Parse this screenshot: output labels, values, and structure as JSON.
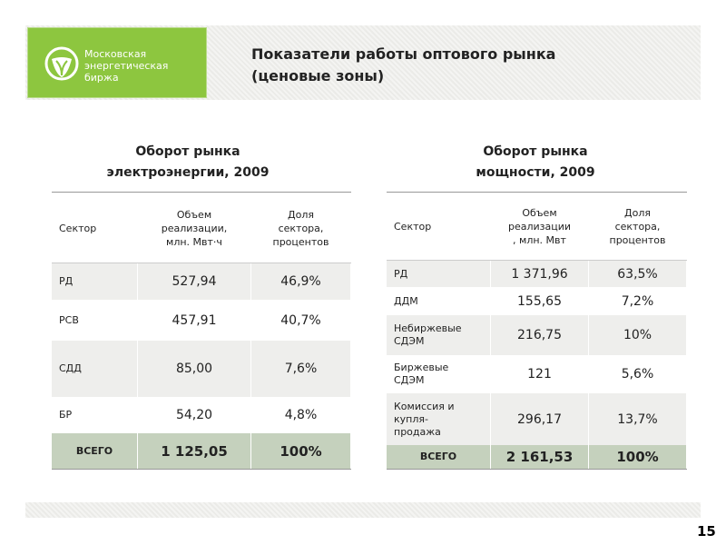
{
  "header": {
    "logo": "Московская\nэнергетическая\nбиржа",
    "title": "Показатели работы оптового рынка\n(ценовые зоны)"
  },
  "tables": [
    {
      "title": "Оборот рынка\nэлектроэнергии, 2009",
      "columns": [
        "Сектор",
        "Объем\nреализации,\nмлн. Мвт·ч",
        "Доля\nсектора,\nпроцентов"
      ],
      "rows": [
        [
          "РД",
          "527,94",
          "46,9%"
        ],
        [
          "РСВ",
          "457,91",
          "40,7%"
        ],
        [
          "СДД",
          "85,00",
          "7,6%"
        ],
        [
          "БР",
          "54,20",
          "4,8%"
        ]
      ],
      "total": [
        "ВСЕГО",
        "1 125,05",
        "100%"
      ]
    },
    {
      "title": "Оборот рынка\nмощности, 2009",
      "columns": [
        "Сектор",
        "Объем\nреализации\n, млн. Мвт",
        "Доля\nсектора,\nпроцентов"
      ],
      "rows": [
        [
          "РД",
          "1 371,96",
          "63,5%"
        ],
        [
          "ДДМ",
          "155,65",
          "7,2%"
        ],
        [
          "Небиржевые\nСДЭМ",
          "216,75",
          "10%"
        ],
        [
          "Биржевые\nСДЭМ",
          "121",
          "5,6%"
        ],
        [
          "Комиссия и\nкупля-\nпродажа",
          "296,17",
          "13,7%"
        ]
      ],
      "total": [
        "ВСЕГО",
        "2 161,53",
        "100%"
      ]
    }
  ],
  "page_number": "15"
}
